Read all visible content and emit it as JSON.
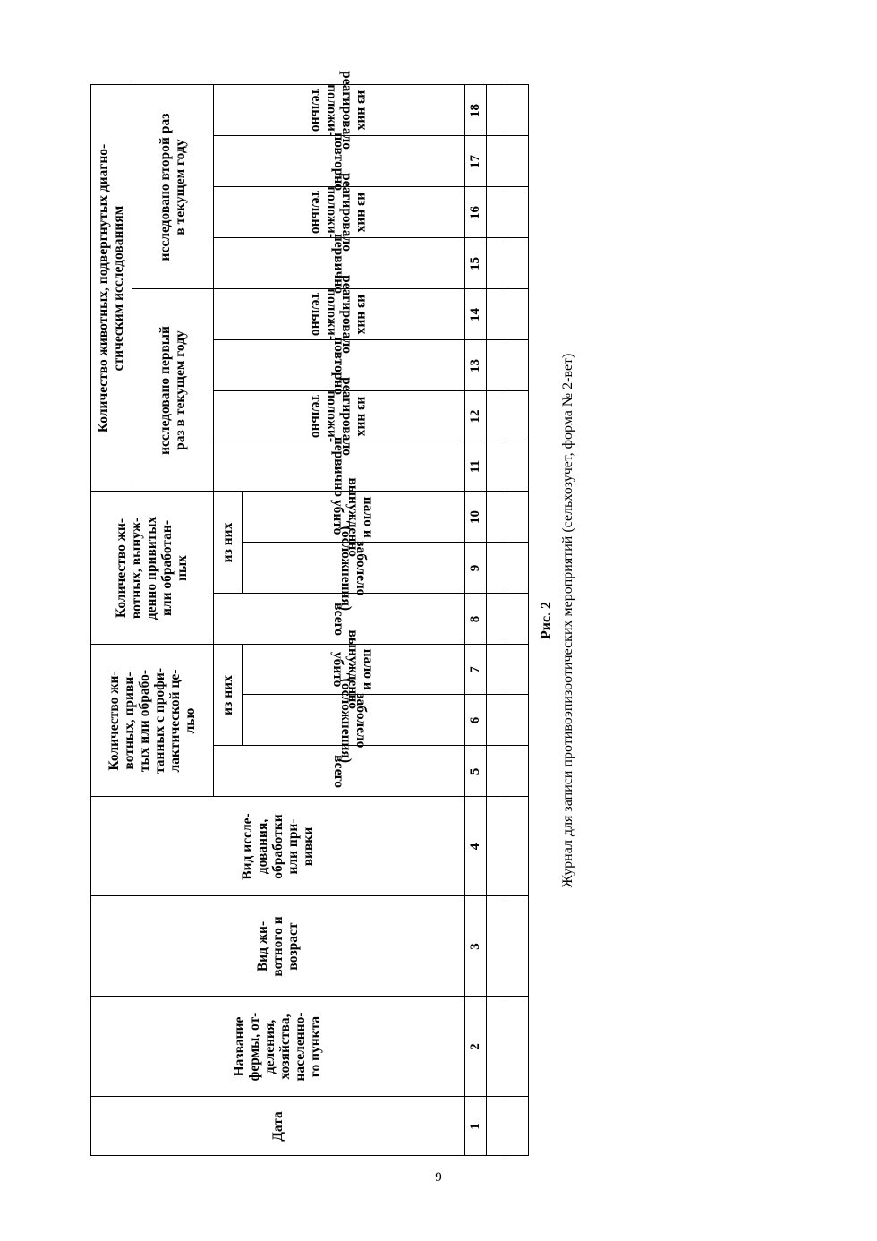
{
  "table": {
    "group_prophylactic": "Количество жи-\nвотных, приви-\nтых или обрабо-\nтанных с профи-\nлактической це-\nлью",
    "group_forced": "Количество жи-\nвотных, вынуж-\nденно привитых\nили обработан-\nных",
    "group_diagnostic": "Количество животных, подвергнутых диагно-\nстическим исследованиям",
    "sub_first": "исследовано первый\nраз в текущем году",
    "sub_second": "исследовано второй раз\nв текущем году",
    "of_them": "из них",
    "columns": [
      "Дата",
      "Название\nфермы, от-\nделения,\nхозяйства,\nнаселенно-\nго пункта",
      "Вид жи-\nвотного и\nвозраст",
      "Вид иссле-\nдования,\nобработки\nили при-\nвивки",
      "всего",
      "заболело (осложнения)",
      "пало и вынужденно убито",
      "всего",
      "заболело (осложнения)",
      "пало и вынужденно убито",
      "первично",
      "из них реагировало положи-\nтельно",
      "повторно",
      "из них реагировало положи-\nтельно",
      "первично",
      "из них реагировало положи-\nтельно",
      "повторно",
      "из них реагировало положи-\nтельно"
    ],
    "numbers": [
      "1",
      "2",
      "3",
      "4",
      "5",
      "6",
      "7",
      "8",
      "9",
      "10",
      "11",
      "12",
      "13",
      "14",
      "15",
      "16",
      "17",
      "18"
    ]
  },
  "caption": {
    "figure": "Рис. 2",
    "text": "Журнал для записи противоэпизоотических мероприятий (сельхозучет, форма № 2-вет)"
  },
  "page_number": "9"
}
